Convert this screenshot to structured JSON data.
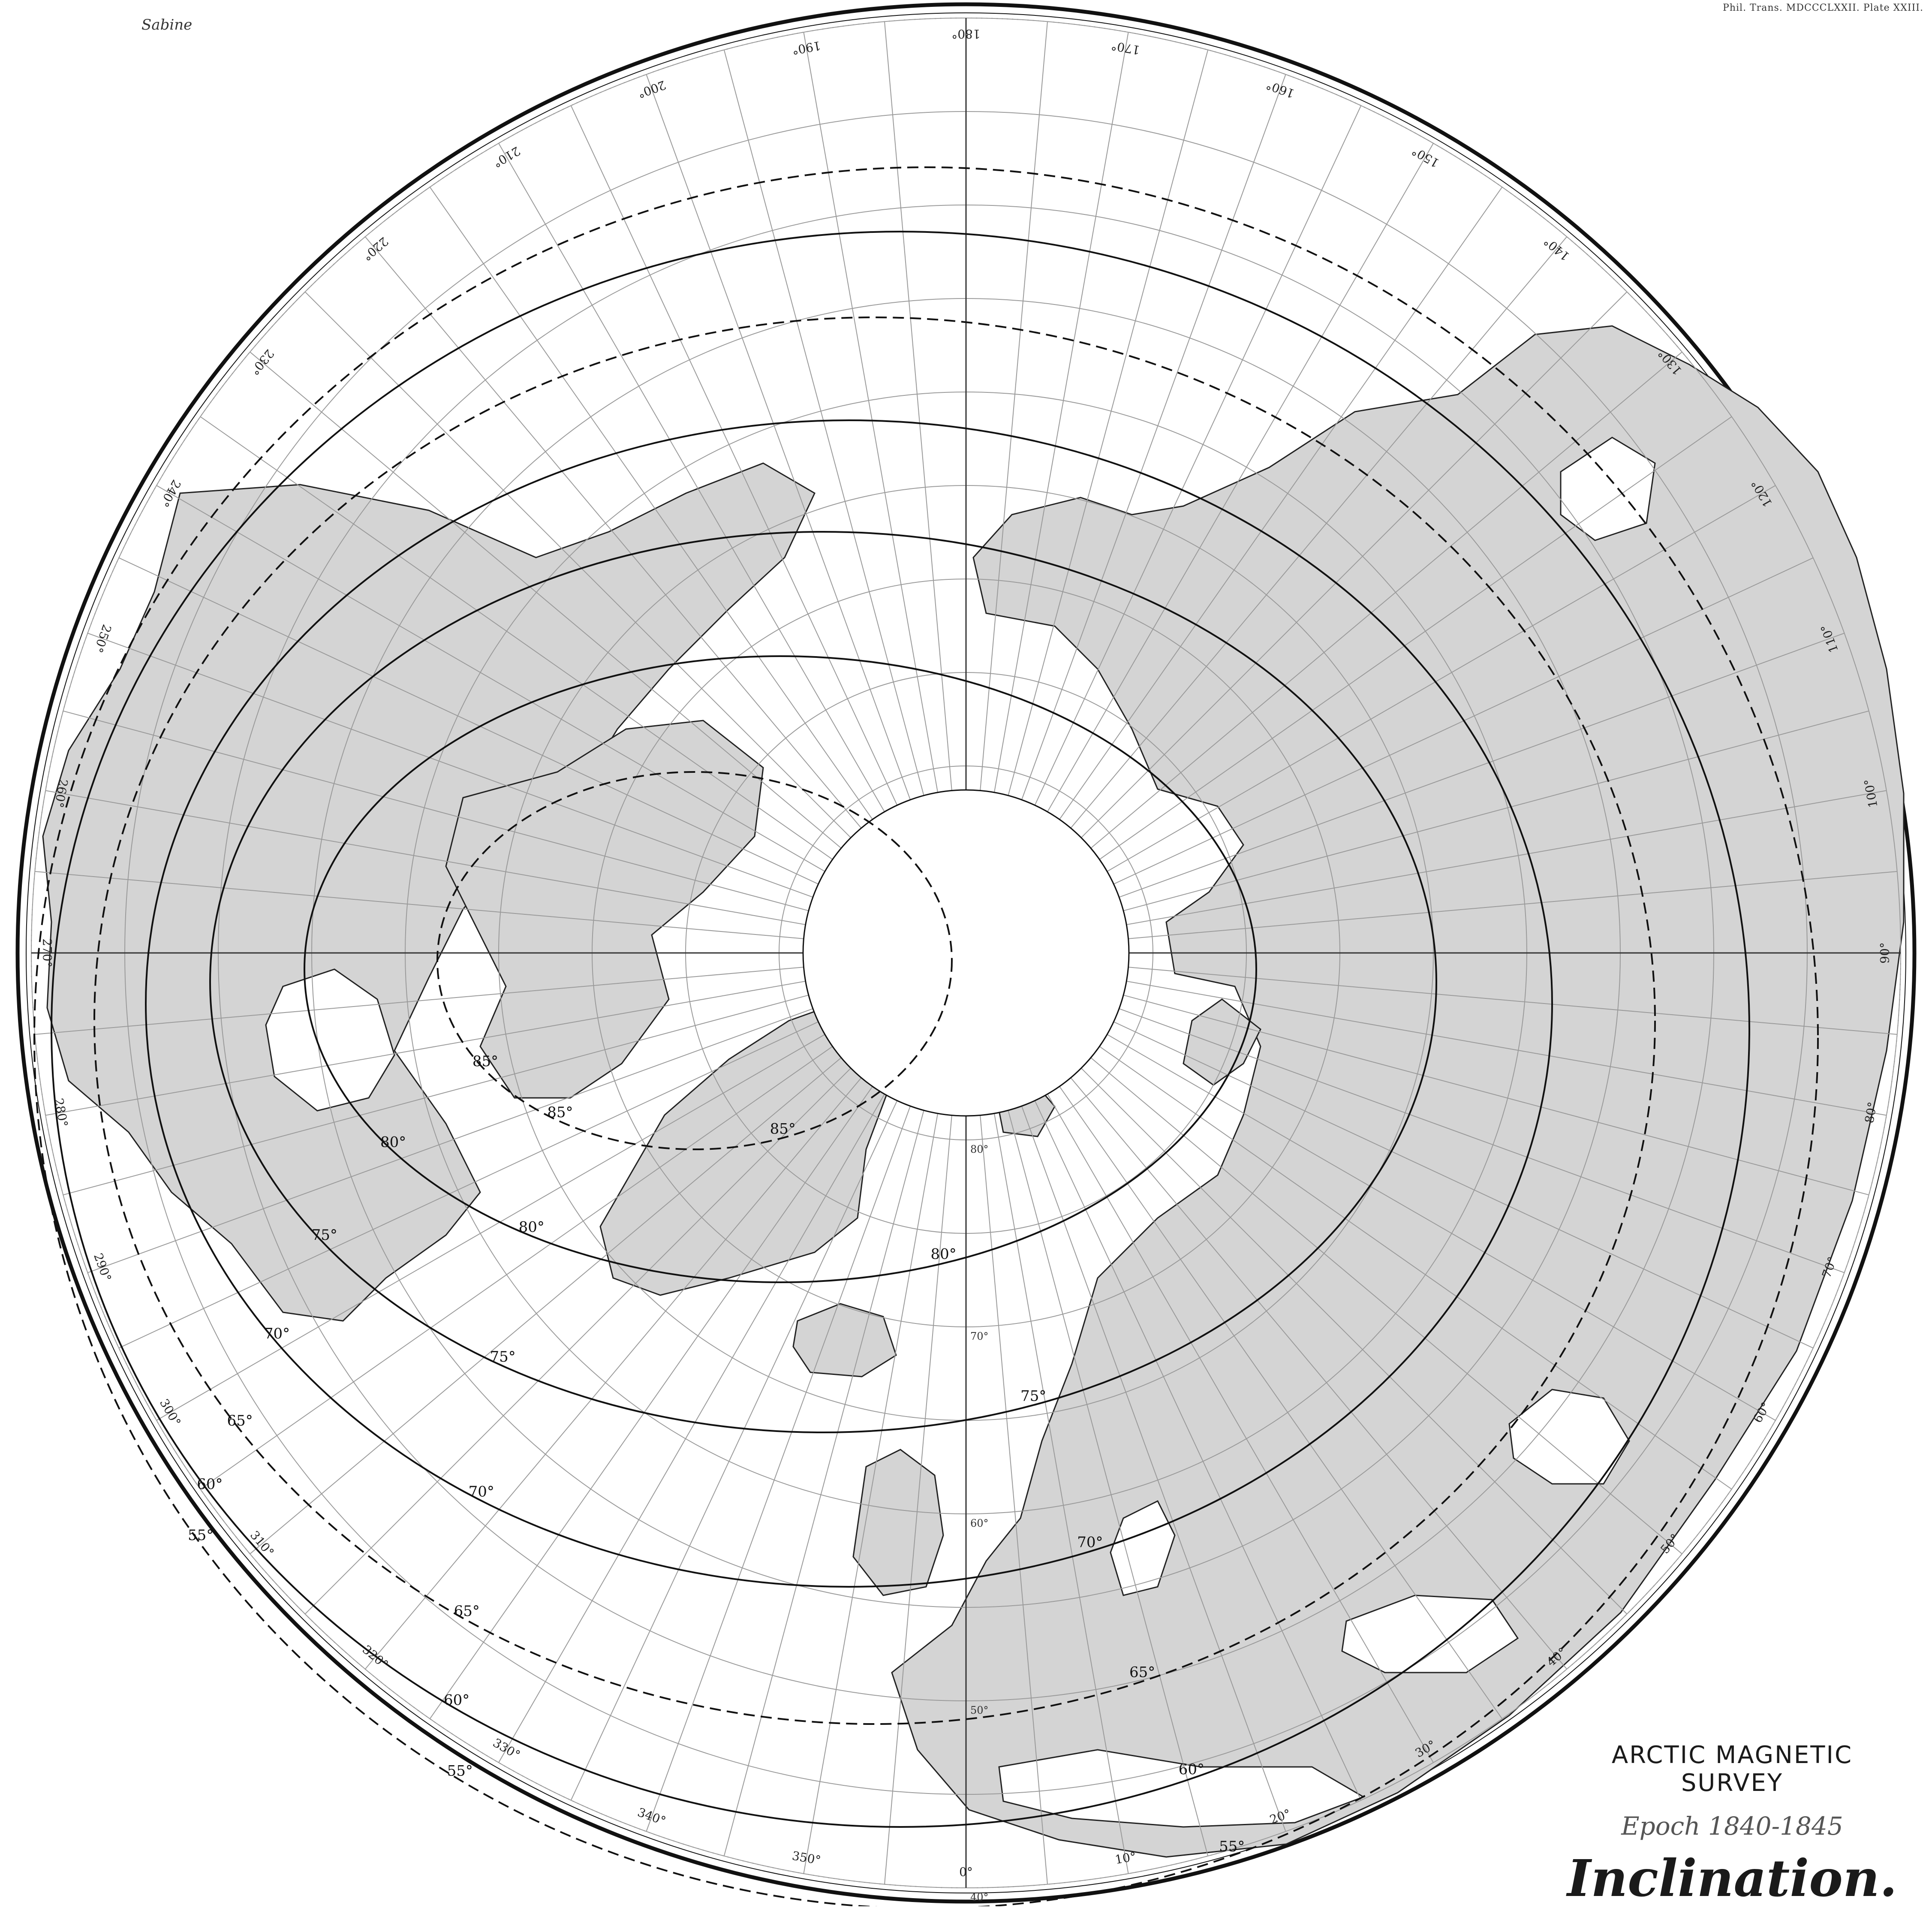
{
  "map": {
    "author": "Sabine",
    "plate_note": "Phil. Trans. MDCCCLXXII. Plate XXIII.",
    "title": "ARCTIC MAGNETIC SURVEY",
    "epoch": "Epoch 1840-1845",
    "subject": "Inclination.",
    "projection": "polar",
    "colors": {
      "land": "#d4d4d4",
      "sea": "#ffffff",
      "line": "#111111",
      "grid": "#9a9a9a"
    }
  },
  "longitude_labels": [
    {
      "deg": 0,
      "text": "0°"
    },
    {
      "deg": 10,
      "text": "10°"
    },
    {
      "deg": 20,
      "text": "20°"
    },
    {
      "deg": 30,
      "text": "30°"
    },
    {
      "deg": 40,
      "text": "40°"
    },
    {
      "deg": 50,
      "text": "50°"
    },
    {
      "deg": 60,
      "text": "60°"
    },
    {
      "deg": 70,
      "text": "70°"
    },
    {
      "deg": 80,
      "text": "80°"
    },
    {
      "deg": 90,
      "text": "90°"
    },
    {
      "deg": 100,
      "text": "100°"
    },
    {
      "deg": 110,
      "text": "110°"
    },
    {
      "deg": 120,
      "text": "120°"
    },
    {
      "deg": 130,
      "text": "130°"
    },
    {
      "deg": 140,
      "text": "140°"
    },
    {
      "deg": 150,
      "text": "150°"
    },
    {
      "deg": 160,
      "text": "160°"
    },
    {
      "deg": 170,
      "text": "170°"
    },
    {
      "deg": 180,
      "text": "180°"
    },
    {
      "deg": 190,
      "text": "190°"
    },
    {
      "deg": 200,
      "text": "200°"
    },
    {
      "deg": 210,
      "text": "210°"
    },
    {
      "deg": 220,
      "text": "220°"
    },
    {
      "deg": 230,
      "text": "230°"
    },
    {
      "deg": 240,
      "text": "240°"
    },
    {
      "deg": 250,
      "text": "250°"
    },
    {
      "deg": 260,
      "text": "260°"
    },
    {
      "deg": 270,
      "text": "270°"
    },
    {
      "deg": 280,
      "text": "280°"
    },
    {
      "deg": 290,
      "text": "290°"
    },
    {
      "deg": 300,
      "text": "300°"
    },
    {
      "deg": 310,
      "text": "310°"
    },
    {
      "deg": 320,
      "text": "320°"
    },
    {
      "deg": 330,
      "text": "330°"
    },
    {
      "deg": 340,
      "text": "340°"
    },
    {
      "deg": 350,
      "text": "350°"
    }
  ],
  "latitude_labels": [
    {
      "lat": 80,
      "text": "80°"
    },
    {
      "lat": 70,
      "text": "70°"
    },
    {
      "lat": 60,
      "text": "60°"
    },
    {
      "lat": 50,
      "text": "50°"
    },
    {
      "lat": 40,
      "text": "40°"
    }
  ],
  "isoclinics": [
    {
      "value": 55,
      "text": "55°"
    },
    {
      "value": 60,
      "text": "60°"
    },
    {
      "value": 65,
      "text": "65°"
    },
    {
      "value": 70,
      "text": "70°"
    },
    {
      "value": 75,
      "text": "75°"
    },
    {
      "value": 80,
      "text": "80°"
    },
    {
      "value": 85,
      "text": "85°"
    }
  ]
}
